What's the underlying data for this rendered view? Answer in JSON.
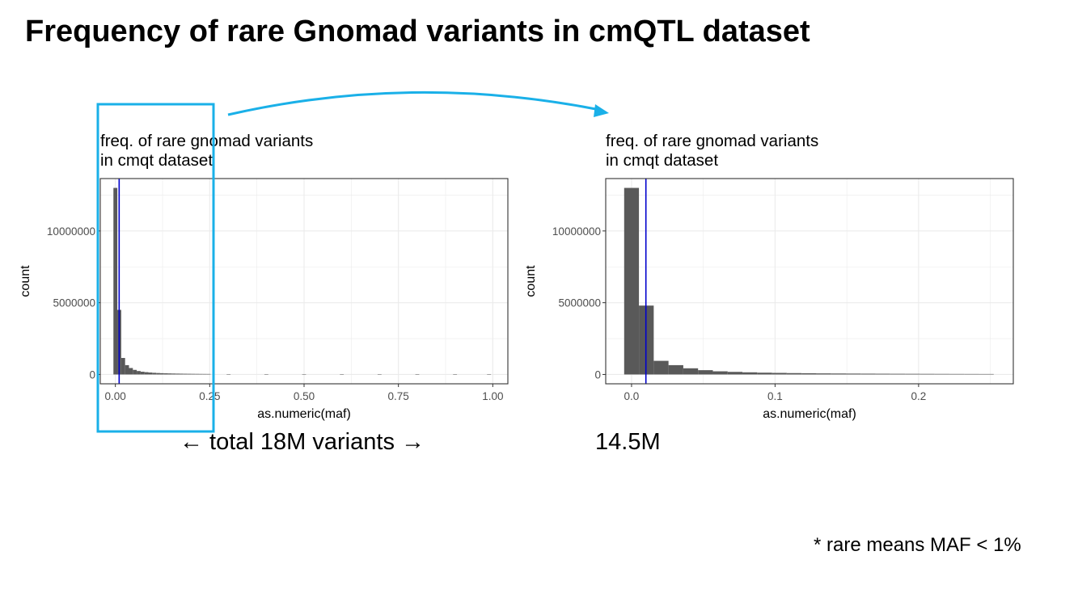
{
  "slide": {
    "title": "Frequency of rare Gnomad variants in cmQTL dataset",
    "caption_total": "← total 18M variants →",
    "caption_rare": "14.5M",
    "footnote": "* rare means MAF < 1%"
  },
  "colors": {
    "bar_fill": "#595959",
    "vline": "#0000cc",
    "highlight": "#1ab0e8",
    "grid": "#ebebeb",
    "panel_border": "#333333"
  },
  "chart_data": [
    {
      "type": "bar",
      "title": [
        "freq. of rare gnomad variants",
        "in cmqt dataset"
      ],
      "xlabel": "as.numeric(maf)",
      "ylabel": "count",
      "xlim": [
        -0.04,
        1.04
      ],
      "ylim": [
        -650000,
        13650000
      ],
      "xticks": [
        0.0,
        0.25,
        0.5,
        0.75,
        1.0
      ],
      "xtick_labels": [
        "0.00",
        "0.25",
        "0.50",
        "0.75",
        "1.00"
      ],
      "yticks": [
        0,
        5000000,
        10000000
      ],
      "ytick_labels": [
        "0",
        "5000000",
        "10000000"
      ],
      "grid": true,
      "vline": 0.01,
      "bin_width": 0.0103,
      "bins_x": [
        0.0,
        0.0103,
        0.0206,
        0.0309,
        0.0412,
        0.0515,
        0.0618,
        0.0721,
        0.0824,
        0.0927,
        0.103,
        0.1133,
        0.1236,
        0.1339,
        0.1442,
        0.1545,
        0.1648,
        0.1751,
        0.1854,
        0.1957,
        0.206,
        0.2163,
        0.2266,
        0.2369,
        0.2472,
        0.3,
        0.4,
        0.5,
        0.6,
        0.7,
        0.8,
        0.9,
        0.99
      ],
      "values": [
        13000000,
        4500000,
        1150000,
        650000,
        450000,
        320000,
        240000,
        190000,
        160000,
        135000,
        115000,
        100000,
        90000,
        80000,
        72000,
        65000,
        60000,
        55000,
        50000,
        47000,
        44000,
        41000,
        38000,
        36000,
        34000,
        25000,
        20000,
        17000,
        14000,
        12000,
        10000,
        8000,
        6000
      ]
    },
    {
      "type": "bar",
      "title": [
        "freq. of rare gnomad variants",
        "in cmqt dataset"
      ],
      "xlabel": "as.numeric(maf)",
      "ylabel": "count",
      "xlim": [
        -0.018,
        0.266
      ],
      "ylim": [
        -650000,
        13650000
      ],
      "xticks": [
        0.0,
        0.1,
        0.2
      ],
      "xtick_labels": [
        "0.0",
        "0.1",
        "0.2"
      ],
      "yticks": [
        0,
        5000000,
        10000000
      ],
      "ytick_labels": [
        "0",
        "5000000",
        "10000000"
      ],
      "grid": true,
      "vline": 0.01,
      "bin_width": 0.0103,
      "bins_x": [
        0.0,
        0.0103,
        0.0206,
        0.0309,
        0.0412,
        0.0515,
        0.0618,
        0.0721,
        0.0824,
        0.0927,
        0.103,
        0.1133,
        0.1236,
        0.1339,
        0.1442,
        0.1545,
        0.1648,
        0.1751,
        0.1854,
        0.1957,
        0.206,
        0.2163,
        0.2266,
        0.2369,
        0.2472
      ],
      "values": [
        13000000,
        4800000,
        950000,
        650000,
        430000,
        300000,
        220000,
        180000,
        150000,
        125000,
        110000,
        95000,
        85000,
        75000,
        68000,
        62000,
        57000,
        52000,
        48000,
        45000,
        42000,
        39000,
        36000,
        34000,
        32000
      ]
    }
  ]
}
